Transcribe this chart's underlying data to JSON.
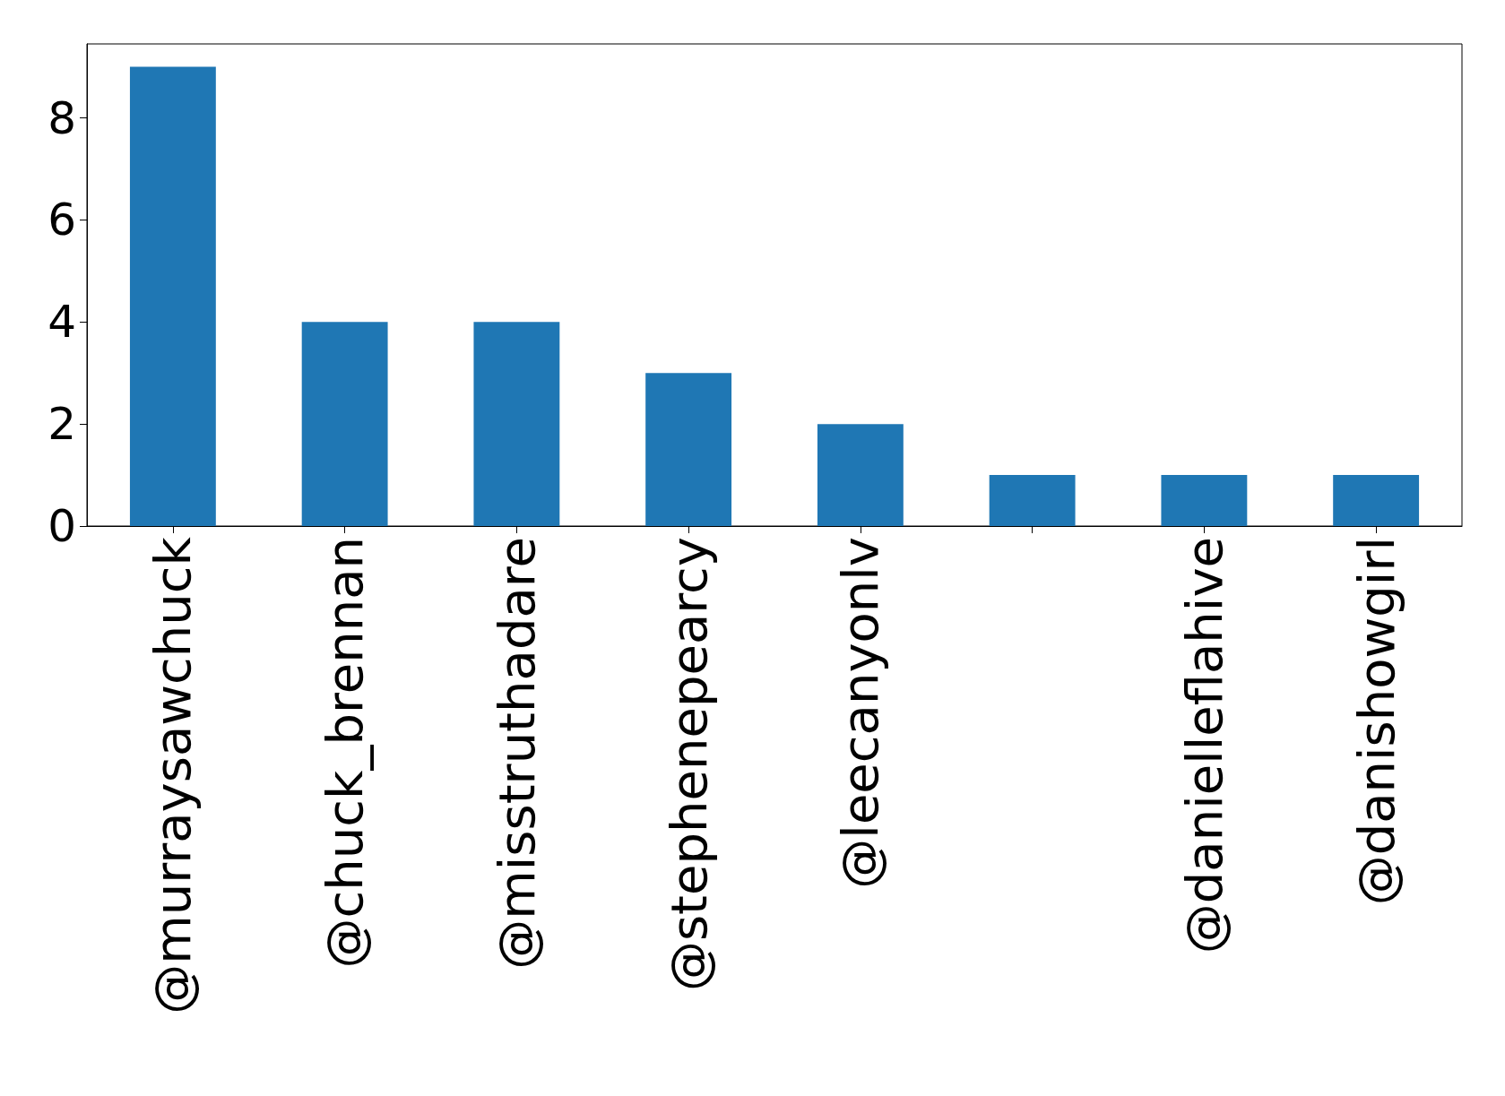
{
  "chart_data": {
    "type": "bar",
    "categories": [
      "@murraysawchuck",
      "@chuck_brennan",
      "@misstruthadare",
      "@stephenepearcy",
      "@leecanyonlv",
      null,
      "@danielleflahive",
      "@danishowgirl"
    ],
    "values": [
      9,
      4,
      4,
      3,
      2,
      1,
      1,
      1
    ],
    "color": "#1f77b4",
    "ylim": [
      0,
      9.45
    ],
    "yticks": [
      0,
      2,
      4,
      6,
      8
    ],
    "grid": false
  }
}
